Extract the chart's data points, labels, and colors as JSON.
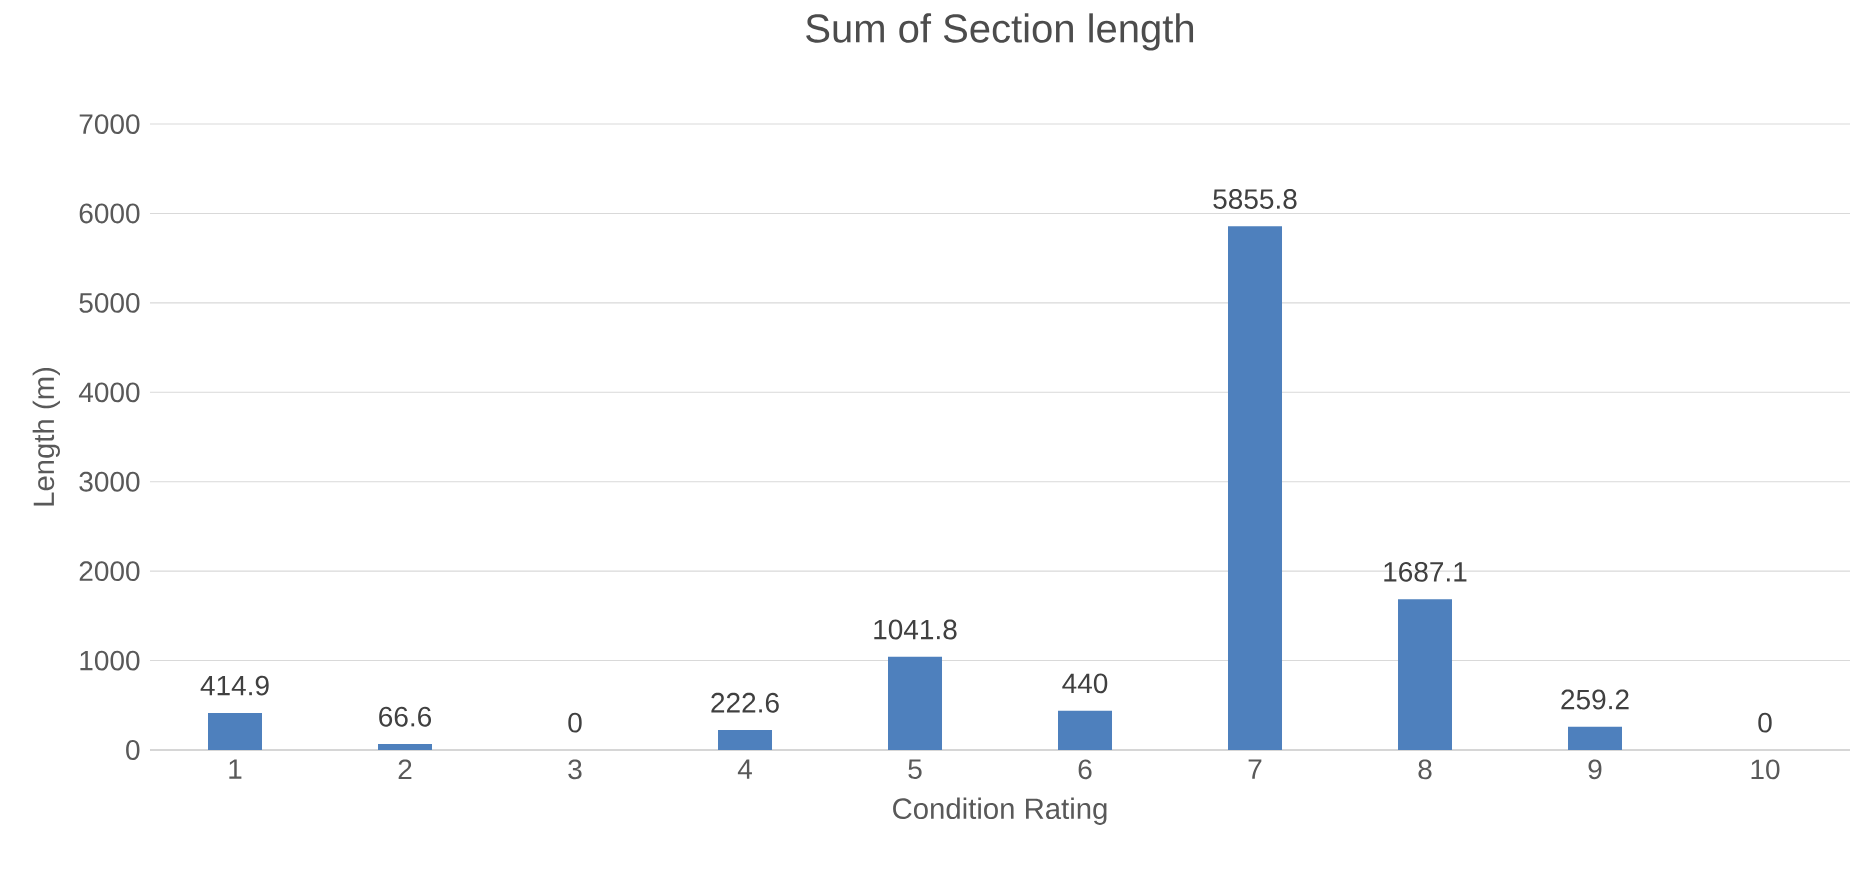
{
  "chart_data": {
    "type": "bar",
    "title": "Sum of Section length",
    "xlabel": "Condition Rating",
    "ylabel": "Length (m)",
    "categories": [
      "1",
      "2",
      "3",
      "4",
      "5",
      "6",
      "7",
      "8",
      "9",
      "10"
    ],
    "values": [
      414.9,
      66.6,
      0,
      222.6,
      1041.8,
      440,
      5855.8,
      1687.1,
      259.2,
      0
    ],
    "color": "#4e80bd",
    "ylim": [
      0,
      7000
    ],
    "yticks": [
      0,
      1000,
      2000,
      3000,
      4000,
      5000,
      6000,
      7000
    ],
    "grid": "y",
    "data_labels": true
  }
}
